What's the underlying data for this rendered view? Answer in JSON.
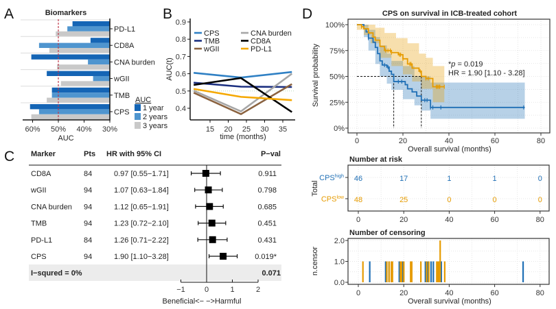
{
  "panel_letters": {
    "A": "A",
    "B": "B",
    "C": "C",
    "D": "D"
  },
  "colors": {
    "year1": "#1565b5",
    "year2": "#4f95cf",
    "year3": "#c9c9c9",
    "reference": "#c0394b",
    "CPS": "#2f80c4",
    "TMB": "#1b2f80",
    "wGII": "#8b6340",
    "CNA burden": "#a6a6a6",
    "CD8A": "#000000",
    "PD-L1": "#f5a800",
    "cps_high": "#1f6fb5",
    "cps_low": "#e69b00"
  },
  "chart_data": [
    {
      "id": "A",
      "type": "bar",
      "orientation": "horizontal",
      "title": "Biomarkers",
      "categories": [
        "PD-L1",
        "CD8A",
        "CNA burden",
        "wGII",
        "TMB",
        "CPS"
      ],
      "series": [
        {
          "name": "1 year",
          "values": [
            44.5,
            37.5,
            60.5,
            54.5,
            52.5,
            61
          ]
        },
        {
          "name": "2 years",
          "values": [
            46.5,
            57.5,
            38.5,
            36.5,
            52.5,
            57.5
          ]
        },
        {
          "name": "3 years",
          "values": [
            51,
            53.5,
            50.5,
            49,
            54.5,
            60.5
          ]
        }
      ],
      "xlabel": "AUC",
      "xticks": [
        "60%",
        "50%",
        "40%",
        "30%"
      ],
      "xtick_values": [
        60,
        50,
        40,
        30
      ],
      "xlim": [
        63,
        30
      ],
      "reference_line": 50,
      "legend_title": "AUC",
      "legend_position": "right"
    },
    {
      "id": "B",
      "type": "line",
      "xlabel": "time (months)",
      "ylabel": "AUC(t)",
      "x": [
        10.5,
        23.5,
        37.5
      ],
      "xticks": [
        "15",
        "20",
        "25",
        "30",
        "35"
      ],
      "xtick_values": [
        15,
        20,
        25,
        30,
        35
      ],
      "yticks": [
        "0.4",
        "0.5",
        "0.6",
        "0.7",
        "0.8",
        "0.9"
      ],
      "ytick_values": [
        0.4,
        0.5,
        0.6,
        0.7,
        0.8,
        0.9
      ],
      "reference_line": 0.5,
      "legend_position": "top",
      "series": [
        {
          "name": "CPS",
          "values": [
            0.605,
            0.578,
            0.61
          ]
        },
        {
          "name": "TMB",
          "values": [
            0.548,
            0.525,
            0.523
          ]
        },
        {
          "name": "wGII",
          "values": [
            0.49,
            0.366,
            0.54
          ]
        },
        {
          "name": "CNA burden",
          "values": [
            0.502,
            0.382,
            0.6
          ]
        },
        {
          "name": "CD8A",
          "values": [
            0.535,
            0.575,
            0.378
          ]
        },
        {
          "name": "PD-L1",
          "values": [
            0.512,
            0.466,
            0.447
          ]
        }
      ]
    },
    {
      "id": "C",
      "type": "table",
      "subtype": "forest",
      "headers": {
        "marker": "Marker",
        "pts": "Pts",
        "hr": "HR with 95% CI",
        "pval": "P−val"
      },
      "rows": [
        {
          "marker": "CD8A",
          "pts": "84",
          "hr_text": "0.97 [0.55−1.71]",
          "hr": 0.97,
          "lo": 0.55,
          "hi": 1.71,
          "pval": "0.911"
        },
        {
          "marker": "wGII",
          "pts": "94",
          "hr_text": "1.07 [0.63−1.84]",
          "hr": 1.07,
          "lo": 0.63,
          "hi": 1.84,
          "pval": "0.798"
        },
        {
          "marker": "CNA burden",
          "pts": "94",
          "hr_text": "1.12 [0.65−1.91]",
          "hr": 1.12,
          "lo": 0.65,
          "hi": 1.91,
          "pval": "0.685"
        },
        {
          "marker": "TMB",
          "pts": "94",
          "hr_text": "1.23 [0.72−2.10]",
          "hr": 1.23,
          "lo": 0.72,
          "hi": 2.1,
          "pval": "0.451"
        },
        {
          "marker": "PD-L1",
          "pts": "84",
          "hr_text": "1.26 [0.71−2.22]",
          "hr": 1.26,
          "lo": 0.71,
          "hi": 2.22,
          "pval": "0.431"
        },
        {
          "marker": "CPS",
          "pts": "94",
          "hr_text": "1.90 [1.10−3.28]",
          "hr": 1.9,
          "lo": 1.1,
          "hi": 3.28,
          "pval": "0.019*"
        }
      ],
      "summary": {
        "label": "I−squred = 0%",
        "pval": "0.071"
      },
      "xticks": [
        "−1",
        "0",
        "1",
        "2"
      ],
      "xtick_values": [
        -1,
        0,
        1,
        2
      ],
      "xscale": "log",
      "xlabel": "Beneficial<−    −>Harmful"
    },
    {
      "id": "D",
      "type": "line",
      "subtype": "kaplan-meier",
      "title": "CPS on survival in ICB-treated cohort",
      "xlabel": "Overall survival (months)",
      "ylabel": "Survival probability",
      "xticks": [
        "0",
        "20",
        "40",
        "60",
        "80"
      ],
      "xtick_values": [
        0,
        20,
        40,
        60,
        80
      ],
      "yticks": [
        "0%",
        "25%",
        "50%",
        "75%",
        "100%"
      ],
      "ytick_values": [
        0,
        0.25,
        0.5,
        0.75,
        1
      ],
      "grid": true,
      "annotation": {
        "p": "*p = 0.019",
        "p_prefix": "*",
        "p_italic": "p",
        "p_rest": " = 0.019",
        "hr": "HR = 1.90 [1.10 - 3.28]"
      },
      "median_survival": [
        16,
        28
      ],
      "series": [
        {
          "name": "CPS high",
          "color_key": "cps_high",
          "steps": [
            [
              0,
              1
            ],
            [
              3,
              0.96
            ],
            [
              4,
              0.93
            ],
            [
              5,
              0.87
            ],
            [
              7,
              0.83
            ],
            [
              8,
              0.78
            ],
            [
              9,
              0.72
            ],
            [
              10,
              0.65
            ],
            [
              11,
              0.61
            ],
            [
              13,
              0.59
            ],
            [
              14,
              0.55
            ],
            [
              15,
              0.52
            ],
            [
              16,
              0.45
            ],
            [
              21,
              0.42
            ],
            [
              22,
              0.38
            ],
            [
              24,
              0.35
            ],
            [
              26,
              0.31
            ],
            [
              28,
              0.27
            ],
            [
              32,
              0.2
            ],
            [
              73,
              0.2
            ]
          ],
          "ci_upper": [
            [
              0,
              1
            ],
            [
              5,
              0.95
            ],
            [
              8,
              0.88
            ],
            [
              10,
              0.8
            ],
            [
              13,
              0.72
            ],
            [
              15,
              0.65
            ],
            [
              20,
              0.6
            ],
            [
              25,
              0.5
            ],
            [
              32,
              0.44
            ],
            [
              73,
              0.44
            ]
          ],
          "ci_lower": [
            [
              0,
              1
            ],
            [
              3,
              0.88
            ],
            [
              5,
              0.75
            ],
            [
              8,
              0.62
            ],
            [
              10,
              0.5
            ],
            [
              13,
              0.43
            ],
            [
              15,
              0.37
            ],
            [
              20,
              0.28
            ],
            [
              25,
              0.22
            ],
            [
              28,
              0.17
            ],
            [
              32,
              0.09
            ],
            [
              73,
              0.09
            ]
          ],
          "censor_times": [
            5,
            12,
            13.5,
            18,
            19.5,
            29.5,
            30.5,
            32,
            33,
            36.5,
            72.5
          ]
        },
        {
          "name": "CPS low",
          "color_key": "cps_low",
          "steps": [
            [
              0,
              1
            ],
            [
              2,
              0.98
            ],
            [
              3,
              0.96
            ],
            [
              5,
              0.92
            ],
            [
              7,
              0.88
            ],
            [
              8,
              0.85
            ],
            [
              10,
              0.79
            ],
            [
              12,
              0.75
            ],
            [
              15,
              0.73
            ],
            [
              18,
              0.71
            ],
            [
              20,
              0.67
            ],
            [
              22,
              0.62
            ],
            [
              24,
              0.58
            ],
            [
              27,
              0.55
            ],
            [
              28,
              0.5
            ],
            [
              30,
              0.48
            ],
            [
              33,
              0.4
            ],
            [
              38,
              0.4
            ]
          ],
          "ci_upper": [
            [
              0,
              1
            ],
            [
              8,
              0.97
            ],
            [
              12,
              0.92
            ],
            [
              17,
              0.87
            ],
            [
              22,
              0.82
            ],
            [
              27,
              0.72
            ],
            [
              30,
              0.68
            ],
            [
              33,
              0.6
            ],
            [
              38,
              0.6
            ]
          ],
          "ci_lower": [
            [
              0,
              0.95
            ],
            [
              3,
              0.9
            ],
            [
              6,
              0.82
            ],
            [
              10,
              0.68
            ],
            [
              15,
              0.6
            ],
            [
              20,
              0.52
            ],
            [
              24,
              0.45
            ],
            [
              28,
              0.38
            ],
            [
              33,
              0.25
            ],
            [
              38,
              0.25
            ]
          ],
          "censor_times": [
            2,
            12.5,
            13.5,
            14.5,
            15,
            18.5,
            19,
            20,
            23,
            23.5,
            27.5,
            30,
            31,
            34.5,
            35,
            35.5,
            36,
            36,
            38
          ]
        }
      ]
    },
    {
      "id": "D-risk",
      "type": "table",
      "title": "Number at risk",
      "ylabel": "Total",
      "xtick_values": [
        0,
        20,
        40,
        60,
        80
      ],
      "xticks": [
        "0",
        "20",
        "40",
        "60",
        "80"
      ],
      "rows": [
        {
          "label": "CPS",
          "sup": "high",
          "color_key": "cps_high",
          "counts": [
            "46",
            "17",
            "1",
            "1",
            "0"
          ]
        },
        {
          "label": "CPS",
          "sup": "low",
          "color_key": "cps_low",
          "counts": [
            "48",
            "25",
            "0",
            "0",
            "0"
          ]
        }
      ]
    },
    {
      "id": "D-censor",
      "type": "bar",
      "title": "Number of censoring",
      "ylabel": "n.censor",
      "xlabel": "Overall survival (months)",
      "xtick_values": [
        0,
        20,
        40,
        60,
        80
      ],
      "xticks": [
        "0",
        "20",
        "40",
        "60",
        "80"
      ],
      "yticks": [
        "0.0",
        "1.0",
        "2.0"
      ],
      "ytick_values": [
        0,
        1,
        2
      ]
    }
  ]
}
